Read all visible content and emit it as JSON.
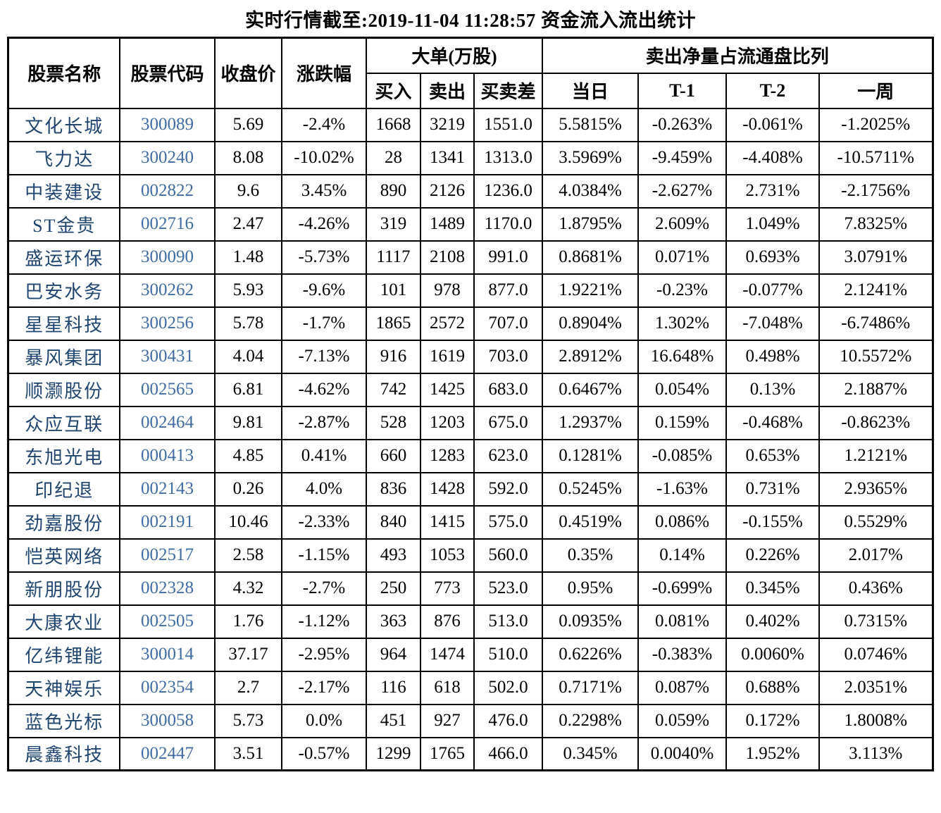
{
  "title": "实时行情截至:2019-11-04 11:28:57 资金流入流出统计",
  "colors": {
    "background": "#ffffff",
    "border": "#000000",
    "text": "#000000",
    "stock_name_text": "#1f4571",
    "stock_code_text": "#3e6ca3"
  },
  "table": {
    "header_groups": {
      "large_orders": "大单(万股)",
      "net_sell_ratio": "卖出净量占流通盘比列"
    },
    "headers": {
      "stock_name": "股票名称",
      "stock_code": "股票代码",
      "close_price": "收盘价",
      "change_pct": "涨跌幅",
      "buy": "买入",
      "sell": "卖出",
      "buy_sell_diff": "买卖差",
      "current_day": "当日",
      "t_minus_1": "T-1",
      "t_minus_2": "T-2",
      "one_week": "一周"
    },
    "rows": [
      [
        "文化长城",
        "300089",
        "5.69",
        "-2.4%",
        "1668",
        "3219",
        "1551.0",
        "5.5815%",
        "-0.263%",
        "-0.061%",
        "-1.2025%"
      ],
      [
        "飞力达",
        "300240",
        "8.08",
        "-10.02%",
        "28",
        "1341",
        "1313.0",
        "3.5969%",
        "-9.459%",
        "-4.408%",
        "-10.5711%"
      ],
      [
        "中装建设",
        "002822",
        "9.6",
        "3.45%",
        "890",
        "2126",
        "1236.0",
        "4.0384%",
        "-2.627%",
        "2.731%",
        "-2.1756%"
      ],
      [
        "ST金贵",
        "002716",
        "2.47",
        "-4.26%",
        "319",
        "1489",
        "1170.0",
        "1.8795%",
        "2.609%",
        "1.049%",
        "7.8325%"
      ],
      [
        "盛运环保",
        "300090",
        "1.48",
        "-5.73%",
        "1117",
        "2108",
        "991.0",
        "0.8681%",
        "0.071%",
        "0.693%",
        "3.0791%"
      ],
      [
        "巴安水务",
        "300262",
        "5.93",
        "-9.6%",
        "101",
        "978",
        "877.0",
        "1.9221%",
        "-0.23%",
        "-0.077%",
        "2.1241%"
      ],
      [
        "星星科技",
        "300256",
        "5.78",
        "-1.7%",
        "1865",
        "2572",
        "707.0",
        "0.8904%",
        "1.302%",
        "-7.048%",
        "-6.7486%"
      ],
      [
        "暴风集团",
        "300431",
        "4.04",
        "-7.13%",
        "916",
        "1619",
        "703.0",
        "2.8912%",
        "16.648%",
        "0.498%",
        "10.5572%"
      ],
      [
        "顺灏股份",
        "002565",
        "6.81",
        "-4.62%",
        "742",
        "1425",
        "683.0",
        "0.6467%",
        "0.054%",
        "0.13%",
        "2.1887%"
      ],
      [
        "众应互联",
        "002464",
        "9.81",
        "-2.87%",
        "528",
        "1203",
        "675.0",
        "1.2937%",
        "0.159%",
        "-0.468%",
        "-0.8623%"
      ],
      [
        "东旭光电",
        "000413",
        "4.85",
        "0.41%",
        "660",
        "1283",
        "623.0",
        "0.1281%",
        "-0.085%",
        "0.653%",
        "1.2121%"
      ],
      [
        "印纪退",
        "002143",
        "0.26",
        "4.0%",
        "836",
        "1428",
        "592.0",
        "0.5245%",
        "-1.63%",
        "0.731%",
        "2.9365%"
      ],
      [
        "劲嘉股份",
        "002191",
        "10.46",
        "-2.33%",
        "840",
        "1415",
        "575.0",
        "0.4519%",
        "0.086%",
        "-0.155%",
        "0.5529%"
      ],
      [
        "恺英网络",
        "002517",
        "2.58",
        "-1.15%",
        "493",
        "1053",
        "560.0",
        "0.35%",
        "0.14%",
        "0.226%",
        "2.017%"
      ],
      [
        "新朋股份",
        "002328",
        "4.32",
        "-2.7%",
        "250",
        "773",
        "523.0",
        "0.95%",
        "-0.699%",
        "0.345%",
        "0.436%"
      ],
      [
        "大康农业",
        "002505",
        "1.76",
        "-1.12%",
        "363",
        "876",
        "513.0",
        "0.0935%",
        "0.081%",
        "0.402%",
        "0.7315%"
      ],
      [
        "亿纬锂能",
        "300014",
        "37.17",
        "-2.95%",
        "964",
        "1474",
        "510.0",
        "0.6226%",
        "-0.383%",
        "0.0060%",
        "0.0746%"
      ],
      [
        "天神娱乐",
        "002354",
        "2.7",
        "-2.17%",
        "116",
        "618",
        "502.0",
        "0.7171%",
        "0.087%",
        "0.688%",
        "2.0351%"
      ],
      [
        "蓝色光标",
        "300058",
        "5.73",
        "0.0%",
        "451",
        "927",
        "476.0",
        "0.2298%",
        "0.059%",
        "0.172%",
        "1.8008%"
      ],
      [
        "晨鑫科技",
        "002447",
        "3.51",
        "-0.57%",
        "1299",
        "1765",
        "466.0",
        "0.345%",
        "0.0040%",
        "1.952%",
        "3.113%"
      ]
    ]
  }
}
